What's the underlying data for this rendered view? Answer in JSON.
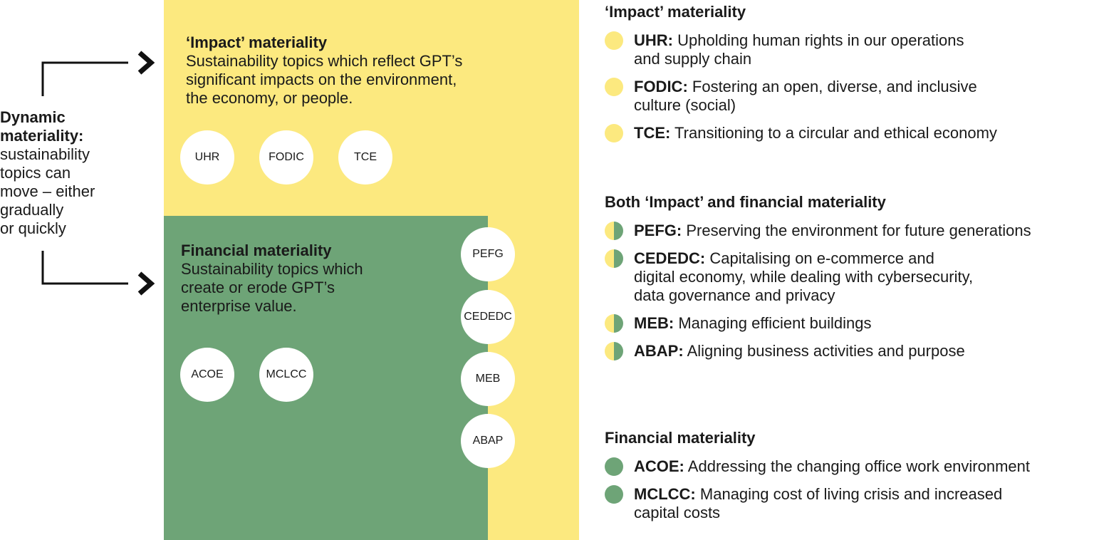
{
  "dynamic": {
    "title_lines": [
      "Dynamic",
      "materiality:"
    ],
    "text_lines": [
      "sustainability",
      "topics can",
      "move – either",
      "gradually",
      "or quickly"
    ]
  },
  "boxes": {
    "impact": {
      "title": "‘Impact’ materiality",
      "desc_lines": [
        "Sustainability topics which reflect GPT’s",
        "significant impacts on the environment,",
        "the economy, or people."
      ],
      "circles": [
        "UHR",
        "FODIC",
        "TCE"
      ],
      "color": "#fce97f"
    },
    "financial": {
      "title": "Financial materiality",
      "desc_lines": [
        "Sustainability topics which",
        "create or erode GPT’s",
        "enterprise value."
      ],
      "circles": [
        "ACOE",
        "MCLCC"
      ],
      "color": "#6ea477"
    }
  },
  "shared_circles": [
    "PEFG",
    "CEDEDC",
    "MEB",
    "ABAP"
  ],
  "legend": [
    {
      "heading": "‘Impact’ materiality",
      "marker_colors": [
        "#fce97f"
      ],
      "items": [
        {
          "code": "UHR:",
          "text_lines": [
            "Upholding human rights in our operations",
            "and supply chain"
          ]
        },
        {
          "code": "FODIC:",
          "text_lines": [
            "Fostering an open, diverse, and inclusive",
            "culture (social)"
          ]
        },
        {
          "code": "TCE:",
          "text_lines": [
            "Transitioning to a circular and ethical economy"
          ]
        }
      ]
    },
    {
      "heading": "Both ‘Impact’ and financial materiality",
      "marker_colors": [
        "#fce97f",
        "#6ea477"
      ],
      "items": [
        {
          "code": "PEFG:",
          "text_lines": [
            "Preserving the environment for future generations"
          ]
        },
        {
          "code": "CEDEDC:",
          "text_lines": [
            "Capitalising on e-commerce and",
            "digital economy, while dealing with cybersecurity,",
            "data governance and privacy"
          ]
        },
        {
          "code": "MEB:",
          "text_lines": [
            "Managing efficient buildings"
          ]
        },
        {
          "code": "ABAP:",
          "text_lines": [
            "Aligning business activities and purpose"
          ]
        }
      ]
    },
    {
      "heading": "Financial materiality",
      "marker_colors": [
        "#6ea477"
      ],
      "items": [
        {
          "code": "ACOE:",
          "text_lines": [
            "Addressing the changing office work environment"
          ]
        },
        {
          "code": "MCLCC:",
          "text_lines": [
            "Managing cost of living crisis and increased",
            "capital costs"
          ]
        }
      ]
    }
  ]
}
